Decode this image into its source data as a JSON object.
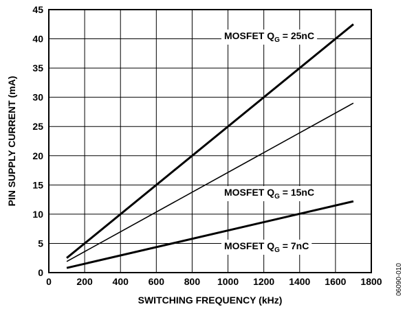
{
  "chart_data": {
    "type": "line",
    "xlabel": "SWITCHING FREQUENCY (kHz)",
    "ylabel": "PIN SUPPLY CURRENT (mA)",
    "xlim": [
      0,
      1800
    ],
    "ylim": [
      0,
      45
    ],
    "xticks": [
      0,
      200,
      400,
      600,
      800,
      1000,
      1200,
      1400,
      1600,
      1800
    ],
    "yticks": [
      0,
      5,
      10,
      15,
      20,
      25,
      30,
      35,
      40,
      45
    ],
    "xtick_labels": [
      "0",
      "200",
      "400",
      "600",
      "800",
      "1000",
      "1200",
      "1400",
      "1600",
      "1800"
    ],
    "ytick_labels": [
      "0",
      "5",
      "10",
      "15",
      "20",
      "25",
      "30",
      "35",
      "40",
      "45"
    ],
    "grid": true,
    "series": [
      {
        "name": "MOSFET Q_G = 25nC",
        "label_main": "MOSFET Q",
        "label_sub": "G",
        "label_tail": " = 25nC",
        "x": [
          100,
          1700
        ],
        "y": [
          2.5,
          42.5
        ],
        "weight": "heavy"
      },
      {
        "name": "MOSFET Q_G = 15nC",
        "label_main": "MOSFET Q",
        "label_sub": "G",
        "label_tail": " = 15nC",
        "x": [
          100,
          1700
        ],
        "y": [
          1.9,
          29.0
        ],
        "weight": "light"
      },
      {
        "name": "MOSFET Q_G = 7nC",
        "label_main": "MOSFET Q",
        "label_sub": "G",
        "label_tail": " = 7nC",
        "x": [
          100,
          1700
        ],
        "y": [
          0.8,
          12.2
        ],
        "weight": "heavy"
      }
    ],
    "figure_id": "06090-010"
  }
}
